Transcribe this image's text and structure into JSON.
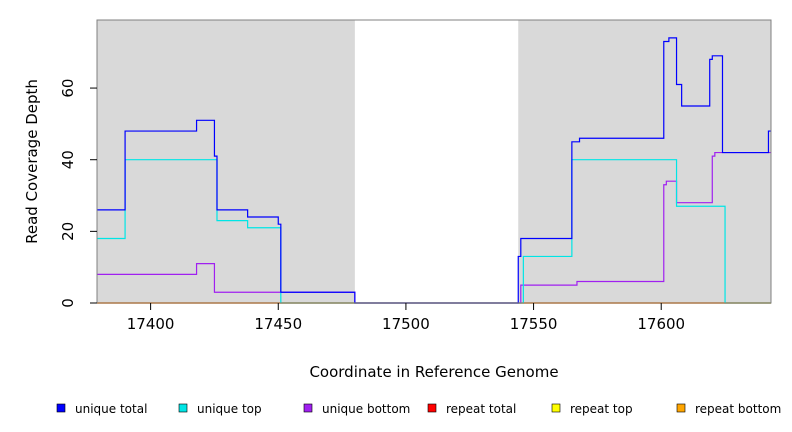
{
  "chart_data": {
    "type": "line",
    "step": true,
    "xlabel": "Coordinate in Reference Genome",
    "ylabel": "Read Coverage Depth",
    "xlim": [
      17379,
      17643
    ],
    "ylim": [
      0,
      79
    ],
    "x_ticks": [
      17400,
      17450,
      17500,
      17550,
      17600
    ],
    "y_ticks": [
      0,
      20,
      40,
      60
    ],
    "shaded_regions": [
      [
        17379,
        17480
      ],
      [
        17544,
        17643
      ]
    ],
    "shade_color": "#d9d9d9",
    "legend_placement": "bottom",
    "series": [
      {
        "name": "unique total",
        "color": "#0000ff",
        "x": [
          17379,
          17390,
          17418,
          17425,
          17426,
          17438,
          17450,
          17451,
          17480,
          17544,
          17545,
          17565,
          17568,
          17601,
          17603,
          17606,
          17608,
          17619,
          17620,
          17624,
          17642,
          17643
        ],
        "y": [
          26,
          48,
          51,
          41,
          26,
          24,
          22,
          3,
          0,
          13,
          18,
          45,
          46,
          73,
          74,
          61,
          55,
          68,
          69,
          42,
          48,
          48
        ]
      },
      {
        "name": "unique top",
        "color": "#00e5e5",
        "x": [
          17379,
          17390,
          17425,
          17426,
          17438,
          17450,
          17451,
          17480,
          17544,
          17546,
          17565,
          17605,
          17606,
          17624,
          17625,
          17643
        ],
        "y": [
          18,
          40,
          40,
          23,
          21,
          21,
          0,
          0,
          0,
          13,
          40,
          40,
          27,
          27,
          0,
          0
        ]
      },
      {
        "name": "unique bottom",
        "color": "#a020f0",
        "x": [
          17379,
          17418,
          17425,
          17480,
          17544,
          17545,
          17567,
          17601,
          17602,
          17605,
          17606,
          17620,
          17621,
          17643
        ],
        "y": [
          8,
          11,
          3,
          0,
          0,
          5,
          6,
          33,
          34,
          34,
          28,
          41,
          42,
          42
        ]
      },
      {
        "name": "repeat total",
        "color": "#ff0000",
        "x": [
          17379,
          17643
        ],
        "y": [
          0,
          0
        ]
      },
      {
        "name": "repeat top",
        "color": "#ffff00",
        "x": [
          17379,
          17643
        ],
        "y": [
          0,
          0
        ]
      },
      {
        "name": "repeat bottom",
        "color": "#ffa500",
        "x": [
          17379,
          17643
        ],
        "y": [
          0,
          0
        ]
      }
    ]
  }
}
